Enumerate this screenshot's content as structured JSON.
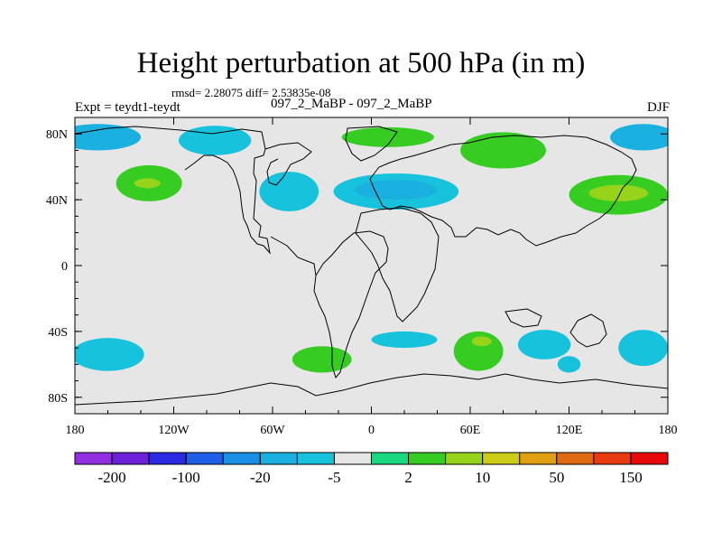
{
  "title": "Height perturbation at 500 hPa (in m)",
  "stats": "rmsd= 2.28075 diff= 2.53835e-08",
  "left_label": "Expt = teydt1-teydt",
  "center_label": "097_2_MaBP - 097_2_MaBP",
  "right_label": "DJF",
  "chart_data": {
    "type": "heatmap",
    "title": "Height perturbation at 500 hPa (in m)",
    "xlabel": "",
    "ylabel": "",
    "xlim": [
      -180,
      180
    ],
    "ylim": [
      -90,
      90
    ],
    "x_ticks": [
      {
        "value": -180,
        "label": "180"
      },
      {
        "value": -120,
        "label": "120W"
      },
      {
        "value": -60,
        "label": "60W"
      },
      {
        "value": 0,
        "label": "0"
      },
      {
        "value": 60,
        "label": "60E"
      },
      {
        "value": 120,
        "label": "120E"
      },
      {
        "value": 180,
        "label": "180"
      }
    ],
    "y_ticks": [
      {
        "value": 80,
        "label": "80N"
      },
      {
        "value": 40,
        "label": "40N"
      },
      {
        "value": 0,
        "label": "0"
      },
      {
        "value": -40,
        "label": "40S"
      },
      {
        "value": -80,
        "label": "80S"
      }
    ],
    "colorbar": {
      "colors": [
        "#8f2fe0",
        "#6a1fd8",
        "#2a2ae0",
        "#1f5fe8",
        "#1a8fe6",
        "#1ab0e0",
        "#16c2dc",
        "#e6e6e6",
        "#18d880",
        "#36cc22",
        "#96d41c",
        "#cccc18",
        "#e0a010",
        "#e06a10",
        "#e83a10",
        "#e80a0a"
      ],
      "labels": [
        {
          "index": 1,
          "text": "-200"
        },
        {
          "index": 3,
          "text": "-100"
        },
        {
          "index": 5,
          "text": "-20"
        },
        {
          "index": 7,
          "text": "-5"
        },
        {
          "index": 9,
          "text": "2"
        },
        {
          "index": 11,
          "text": "10"
        },
        {
          "index": 13,
          "text": "50"
        },
        {
          "index": 15,
          "text": "150"
        }
      ]
    },
    "background_color": "#e6e6e6",
    "coastline_color": "#000000",
    "regions": [
      {
        "name": "NPac-high",
        "lon": -135,
        "lat": 50,
        "rx": 20,
        "ry": 11,
        "category": 9
      },
      {
        "name": "NPac-high-core",
        "lon": -136,
        "lat": 50,
        "rx": 8,
        "ry": 3,
        "category": 10
      },
      {
        "name": "Canada-low",
        "lon": -166,
        "lat": 78,
        "rx": 26,
        "ry": 8,
        "category": 5
      },
      {
        "name": "Canada-low2",
        "lon": -95,
        "lat": 76,
        "rx": 22,
        "ry": 9,
        "category": 6
      },
      {
        "name": "NAtl-low",
        "lon": -50,
        "lat": 45,
        "rx": 18,
        "ry": 12,
        "category": 6
      },
      {
        "name": "Eurasia-low",
        "lon": 15,
        "lat": 45,
        "rx": 38,
        "ry": 11,
        "category": 6
      },
      {
        "name": "Eurasia-low-core",
        "lon": 15,
        "lat": 46,
        "rx": 25,
        "ry": 6,
        "category": 5
      },
      {
        "name": "Arctic-high",
        "lon": 10,
        "lat": 78,
        "rx": 28,
        "ry": 6,
        "category": 9
      },
      {
        "name": "Siberia-high",
        "lon": 80,
        "lat": 70,
        "rx": 26,
        "ry": 11,
        "category": 9
      },
      {
        "name": "NE-Asia-low",
        "lon": 165,
        "lat": 78,
        "rx": 20,
        "ry": 8,
        "category": 5
      },
      {
        "name": "NWPac-high",
        "lon": 150,
        "lat": 43,
        "rx": 30,
        "ry": 12,
        "category": 9
      },
      {
        "name": "NWPac-high-core",
        "lon": 150,
        "lat": 44,
        "rx": 18,
        "ry": 5,
        "category": 10
      },
      {
        "name": "SPac-low",
        "lon": -160,
        "lat": -54,
        "rx": 22,
        "ry": 10,
        "category": 6
      },
      {
        "name": "SAtl-high",
        "lon": -30,
        "lat": -57,
        "rx": 18,
        "ry": 8,
        "category": 9
      },
      {
        "name": "SouthOcean-low",
        "lon": 20,
        "lat": -45,
        "rx": 20,
        "ry": 5,
        "category": 6
      },
      {
        "name": "SIO-high",
        "lon": 65,
        "lat": -52,
        "rx": 15,
        "ry": 12,
        "category": 9
      },
      {
        "name": "SIO-high-core",
        "lon": 67,
        "lat": -46,
        "rx": 6,
        "ry": 3,
        "category": 10
      },
      {
        "name": "SIO-low",
        "lon": 105,
        "lat": -48,
        "rx": 16,
        "ry": 9,
        "category": 6
      },
      {
        "name": "Aus-low",
        "lon": 120,
        "lat": -60,
        "rx": 7,
        "ry": 5,
        "category": 6
      },
      {
        "name": "SWPac-low",
        "lon": 165,
        "lat": -50,
        "rx": 15,
        "ry": 11,
        "category": 6
      }
    ]
  }
}
